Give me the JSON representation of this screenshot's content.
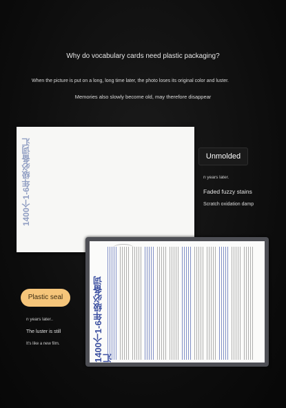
{
  "headline": "Why do vocabulary cards need plastic packaging?",
  "intro_line1": "When the picture is put on a long, long time later, the photo loses its original color and luster.",
  "intro_line2": "Memories also slowly become old, may therefore disappear",
  "unsealed_card": {
    "title": "1400个1-6年级必备词汇"
  },
  "unsealed_labels": {
    "badge": "Unmolded",
    "years": "n years later.",
    "faded": "Faded fuzzy stains",
    "scratch": "Scratch oxidation damp"
  },
  "sealed_card": {
    "title": "1400个1-6年级必备词汇"
  },
  "sealed_labels": {
    "badge": "Plastic seal",
    "years": "n years later..",
    "luster": "The luster is still",
    "new_film": "It's like a new film."
  },
  "colors": {
    "badge_plastic": "#f5c57a",
    "card_title_blue": "#3b4fa0",
    "background": "#0d0d0d"
  }
}
